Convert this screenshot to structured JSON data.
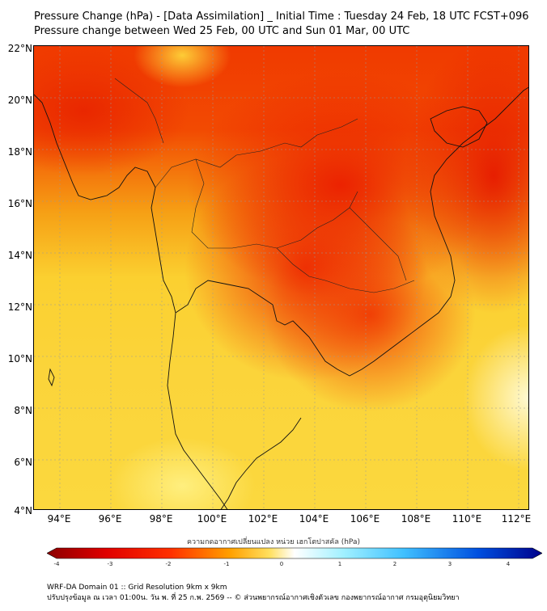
{
  "title_line1": "Pressure Change (hPa) - [Data Assimilation] _ Initial Time : Tuesday 24 Feb, 18 UTC FCST+096",
  "title_line2": "Pressure change between Wed 25 Feb, 00 UTC and Sun 01 Mar, 00 UTC",
  "lat_labels": [
    "22°N",
    "20°N",
    "18°N",
    "16°N",
    "14°N",
    "12°N",
    "10°N",
    "8°N",
    "6°N",
    "4°N"
  ],
  "lon_labels": [
    "94°E",
    "96°E",
    "98°E",
    "100°E",
    "102°E",
    "104°E",
    "106°E",
    "108°E",
    "110°E",
    "112°E"
  ],
  "colorbar": {
    "label": "ความกดอากาศเปลี่ยนแปลง หน่วย เฮกโตปาสคัล (hPa)",
    "ticks": [
      "-4",
      "-3",
      "-2",
      "-1",
      "0",
      "1",
      "2",
      "3",
      "4"
    ],
    "min_color": "#8b0000",
    "neg_color": "#ff3000",
    "mid_color": "#ffd700",
    "zero_color": "#ffffff",
    "pos_color": "#40c0ff",
    "max_color": "#00008b"
  },
  "footer_line1": "WRF-DA Domain 01 :: Grid Resolution 9km x 9km",
  "footer_line2": "ปรับปรุงข้อมูล ณ เวลา 01:00น. วัน พ. ที่ 25 ก.พ. 2569 -- © ส่วนพยากรณ์อากาศเชิงตัวเลข กองพยากรณ์อากาศ กรมอุตุนิยมวิทยา"
}
